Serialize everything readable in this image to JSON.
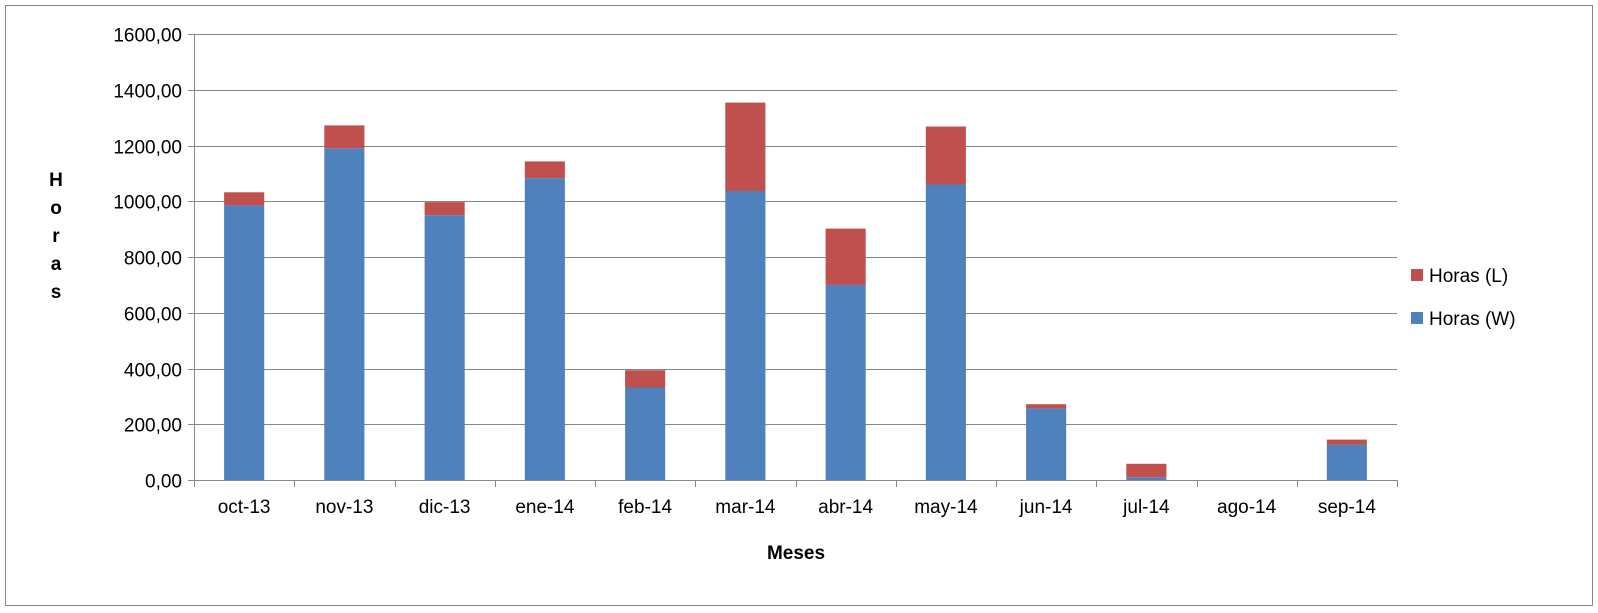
{
  "chart_data": {
    "type": "bar",
    "stacked": true,
    "title": "",
    "xlabel": "Meses",
    "ylabel": "Horas",
    "ylim": [
      0,
      1600
    ],
    "ytick_step": 200,
    "ytick_labels": [
      "0,00",
      "200,00",
      "400,00",
      "600,00",
      "800,00",
      "1000,00",
      "1200,00",
      "1400,00",
      "1600,00"
    ],
    "grid": true,
    "legend_position": "right",
    "categories": [
      "oct-13",
      "nov-13",
      "dic-13",
      "ene-14",
      "feb-14",
      "mar-14",
      "abr-14",
      "may-14",
      "jun-14",
      "jul-14",
      "ago-14",
      "sep-14"
    ],
    "series": [
      {
        "name": "Horas (W)",
        "color": "#4F81BD",
        "values": [
          985,
          1190,
          950,
          1083,
          332,
          1037,
          700,
          1060,
          257,
          10,
          0,
          127
        ]
      },
      {
        "name": "Horas (L)",
        "color": "#C0504D",
        "values": [
          47,
          82,
          47,
          60,
          62,
          317,
          202,
          208,
          15,
          48,
          0,
          18
        ]
      }
    ],
    "legend_order": [
      "Horas (L)",
      "Horas (W)"
    ]
  }
}
